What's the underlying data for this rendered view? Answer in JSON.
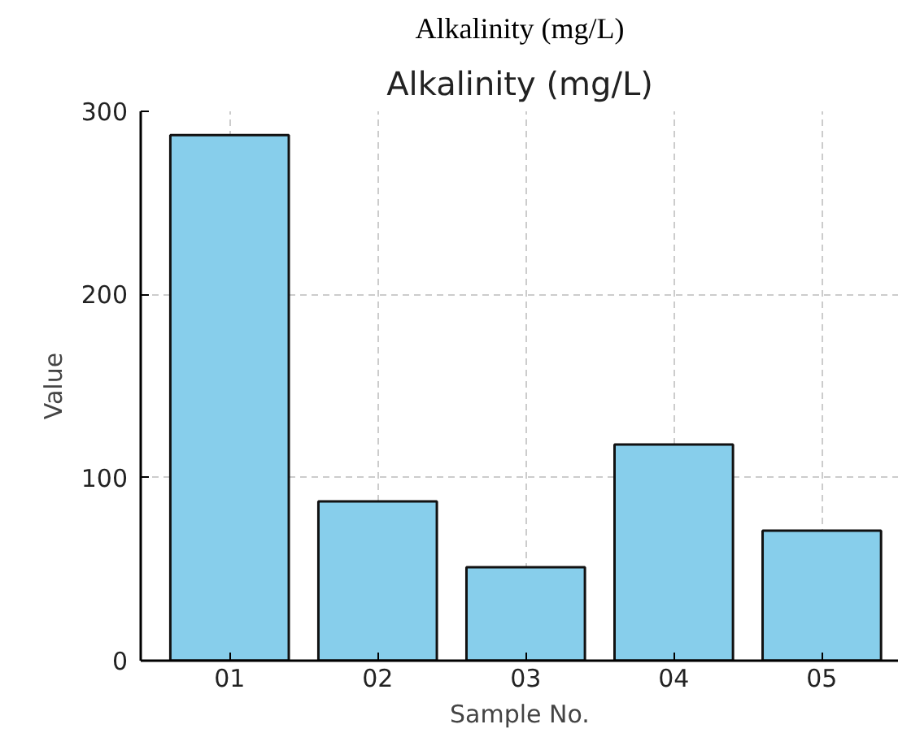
{
  "chart_data": {
    "type": "bar",
    "title": "Alkalinity (mg/L)",
    "annotations": [
      "Alkalinity (mg/L)"
    ],
    "xlabel": "Sample No.",
    "ylabel": "Value",
    "categories": [
      "01",
      "02",
      "03",
      "04",
      "05"
    ],
    "values": [
      287,
      87,
      51,
      118,
      71
    ],
    "color": "#87ceeb",
    "ylim": [
      0,
      300
    ],
    "yticks": [
      0,
      100,
      200,
      300
    ],
    "grid": true
  }
}
